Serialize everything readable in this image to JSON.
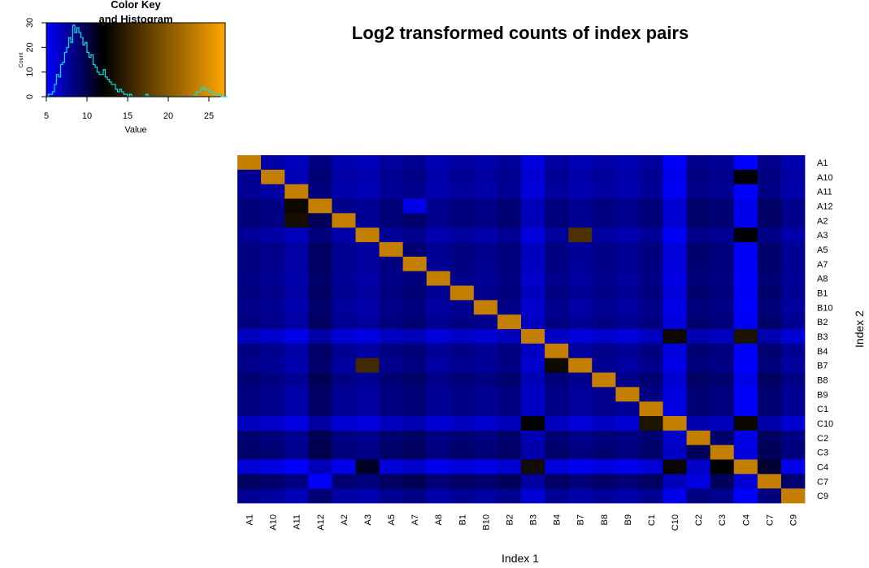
{
  "chart_data": [
    {
      "type": "heatmap",
      "title": "Log2 transformed counts of index pairs",
      "xlabel": "Index 1",
      "ylabel": "Index 2",
      "x_categories": [
        "A1",
        "A10",
        "A11",
        "A12",
        "A2",
        "A3",
        "A5",
        "A7",
        "A8",
        "B1",
        "B10",
        "B2",
        "B3",
        "B4",
        "B7",
        "B8",
        "B9",
        "C1",
        "C10",
        "C2",
        "C3",
        "C4",
        "C7",
        "C9"
      ],
      "y_categories": [
        "A1",
        "A10",
        "A11",
        "A12",
        "A2",
        "A3",
        "A5",
        "A7",
        "A8",
        "B1",
        "B10",
        "B2",
        "B3",
        "B4",
        "B7",
        "B8",
        "B9",
        "C1",
        "C10",
        "C2",
        "C3",
        "C4",
        "C7",
        "C9"
      ],
      "diagonal_value": 23.5,
      "row_base": [
        7.3,
        7.6,
        7.4,
        8.3,
        8.3,
        7.4,
        8.1,
        8.1,
        7.9,
        8.1,
        7.8,
        8.1,
        6.3,
        8.0,
        7.8,
        8.4,
        8.0,
        8.0,
        6.4,
        8.5,
        8.7,
        5.7,
        9.0,
        7.6
      ],
      "col_offset": [
        0.4,
        0.1,
        -0.6,
        1.2,
        -0.1,
        -0.4,
        0.4,
        0.7,
        -0.2,
        0.3,
        0.0,
        0.5,
        -1.4,
        0.3,
        -0.3,
        0.2,
        -0.2,
        0.4,
        -2.1,
        0.8,
        0.5,
        -2.8,
        0.9,
        -0.1
      ],
      "notable_cells": [
        {
          "x": "A11",
          "y": "A12",
          "value": 12.8
        },
        {
          "x": "A11",
          "y": "A2",
          "value": 13.3
        },
        {
          "x": "B7",
          "y": "A3",
          "value": 16.5
        },
        {
          "x": "A3",
          "y": "B7",
          "value": 15.8
        },
        {
          "x": "B4",
          "y": "B7",
          "value": 12.9
        },
        {
          "x": "C4",
          "y": "B3",
          "value": 13.6
        },
        {
          "x": "C10",
          "y": "B3",
          "value": 12.8
        },
        {
          "x": "C1",
          "y": "C10",
          "value": 13.8
        },
        {
          "x": "C4",
          "y": "C10",
          "value": 12.7
        },
        {
          "x": "B3",
          "y": "C10",
          "value": 12.3
        },
        {
          "x": "B3",
          "y": "C4",
          "value": 13.1
        },
        {
          "x": "C10",
          "y": "C4",
          "value": 12.6
        },
        {
          "x": "C3",
          "y": "C4",
          "value": 12.0
        },
        {
          "x": "C7",
          "y": "C4",
          "value": 10.6
        },
        {
          "x": "C4",
          "y": "A10",
          "value": 11.9
        },
        {
          "x": "C4",
          "y": "A3",
          "value": 11.8
        },
        {
          "x": "A3",
          "y": "C4",
          "value": 11.0
        },
        {
          "x": "A12",
          "y": "C7",
          "value": 4.8
        },
        {
          "x": "A7",
          "y": "A12",
          "value": 5.6
        },
        {
          "x": "C2",
          "y": "C7",
          "value": 5.9
        }
      ],
      "legend": "top-left color key with histogram"
    },
    {
      "type": "bar",
      "title_line1": "Color Key",
      "title_line2": "and Histogram",
      "xlabel": "Value",
      "ylabel": "Count",
      "xlim": [
        5,
        27
      ],
      "ylim": [
        0,
        30
      ],
      "x_ticks": [
        5,
        10,
        15,
        20,
        25
      ],
      "y_ticks": [
        0,
        10,
        20,
        30
      ],
      "color_stops": [
        {
          "value": 5,
          "color": "#0000ff"
        },
        {
          "value": 12,
          "color": "#000000"
        },
        {
          "value": 27,
          "color": "#ffa500"
        }
      ],
      "hist_color": "#00e5e5",
      "bin_width": 0.25,
      "bin_start": 5,
      "counts": [
        0,
        1,
        1,
        2,
        5,
        9,
        8,
        13,
        14,
        18,
        20,
        24,
        22,
        29,
        26,
        28,
        26,
        24,
        21,
        22,
        18,
        16,
        17,
        13,
        12,
        10,
        9,
        9,
        11,
        8,
        7,
        6,
        5,
        5,
        3,
        2,
        3,
        2,
        1,
        1,
        0,
        1,
        0,
        0,
        0,
        0,
        0,
        0,
        0,
        1,
        0,
        0,
        0,
        0,
        0,
        0,
        0,
        0,
        0,
        0,
        0,
        0,
        0,
        0,
        0,
        0,
        0,
        0,
        0,
        0,
        0,
        0,
        0,
        1,
        2,
        2,
        3,
        4,
        3,
        3,
        2,
        2,
        1,
        1,
        1,
        1,
        0,
        0,
        0
      ]
    }
  ]
}
